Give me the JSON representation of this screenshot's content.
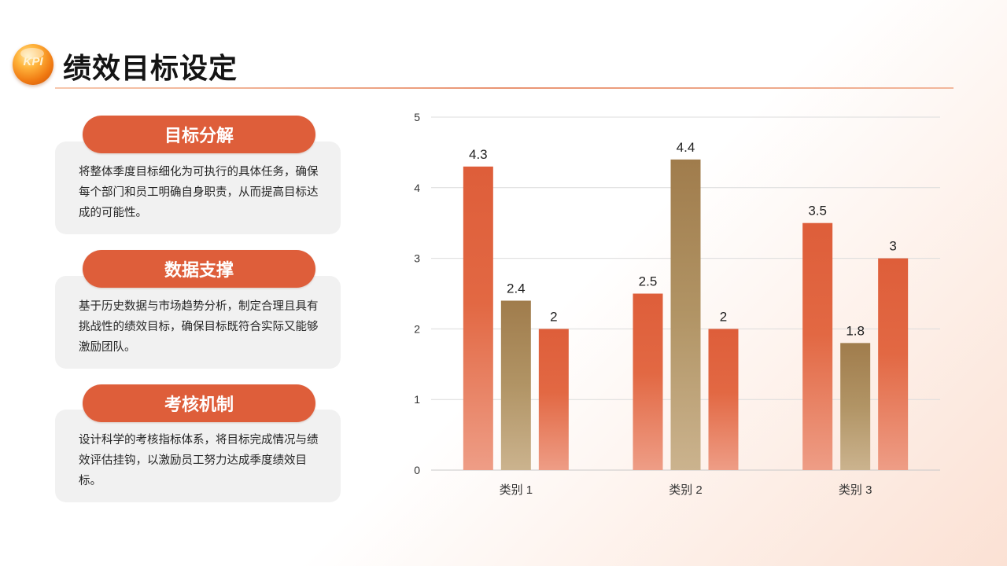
{
  "header": {
    "logo_text": "KPI",
    "title": "绩效目标设定"
  },
  "cards": [
    {
      "title": "目标分解",
      "text": "将整体季度目标细化为可执行的具体任务，确保每个部门和员工明确自身职责，从而提高目标达成的可能性。"
    },
    {
      "title": "数据支撑",
      "text": "基于历史数据与市场趋势分析，制定合理且具有挑战性的绩效目标，确保目标既符合实际又能够激励团队。"
    },
    {
      "title": "考核机制",
      "text": "设计科学的考核指标体系，将目标完成情况与绩效评估挂钩，以激励员工努力达成季度绩效目标。"
    }
  ],
  "chart_data": {
    "type": "bar",
    "categories": [
      "类别 1",
      "类别 2",
      "类别 3"
    ],
    "series": [
      {
        "values": [
          4.3,
          2.5,
          3.5
        ],
        "color": "#de5e3a"
      },
      {
        "values": [
          2.4,
          4.4,
          1.8
        ],
        "color": "#a07c4c"
      },
      {
        "values": [
          2,
          2,
          3
        ],
        "color": "#de5e3a"
      }
    ],
    "ylim": [
      0,
      5
    ],
    "yticks": [
      0,
      1,
      2,
      3,
      4,
      5
    ],
    "data_labels": true,
    "grid": true,
    "legend": "none"
  }
}
